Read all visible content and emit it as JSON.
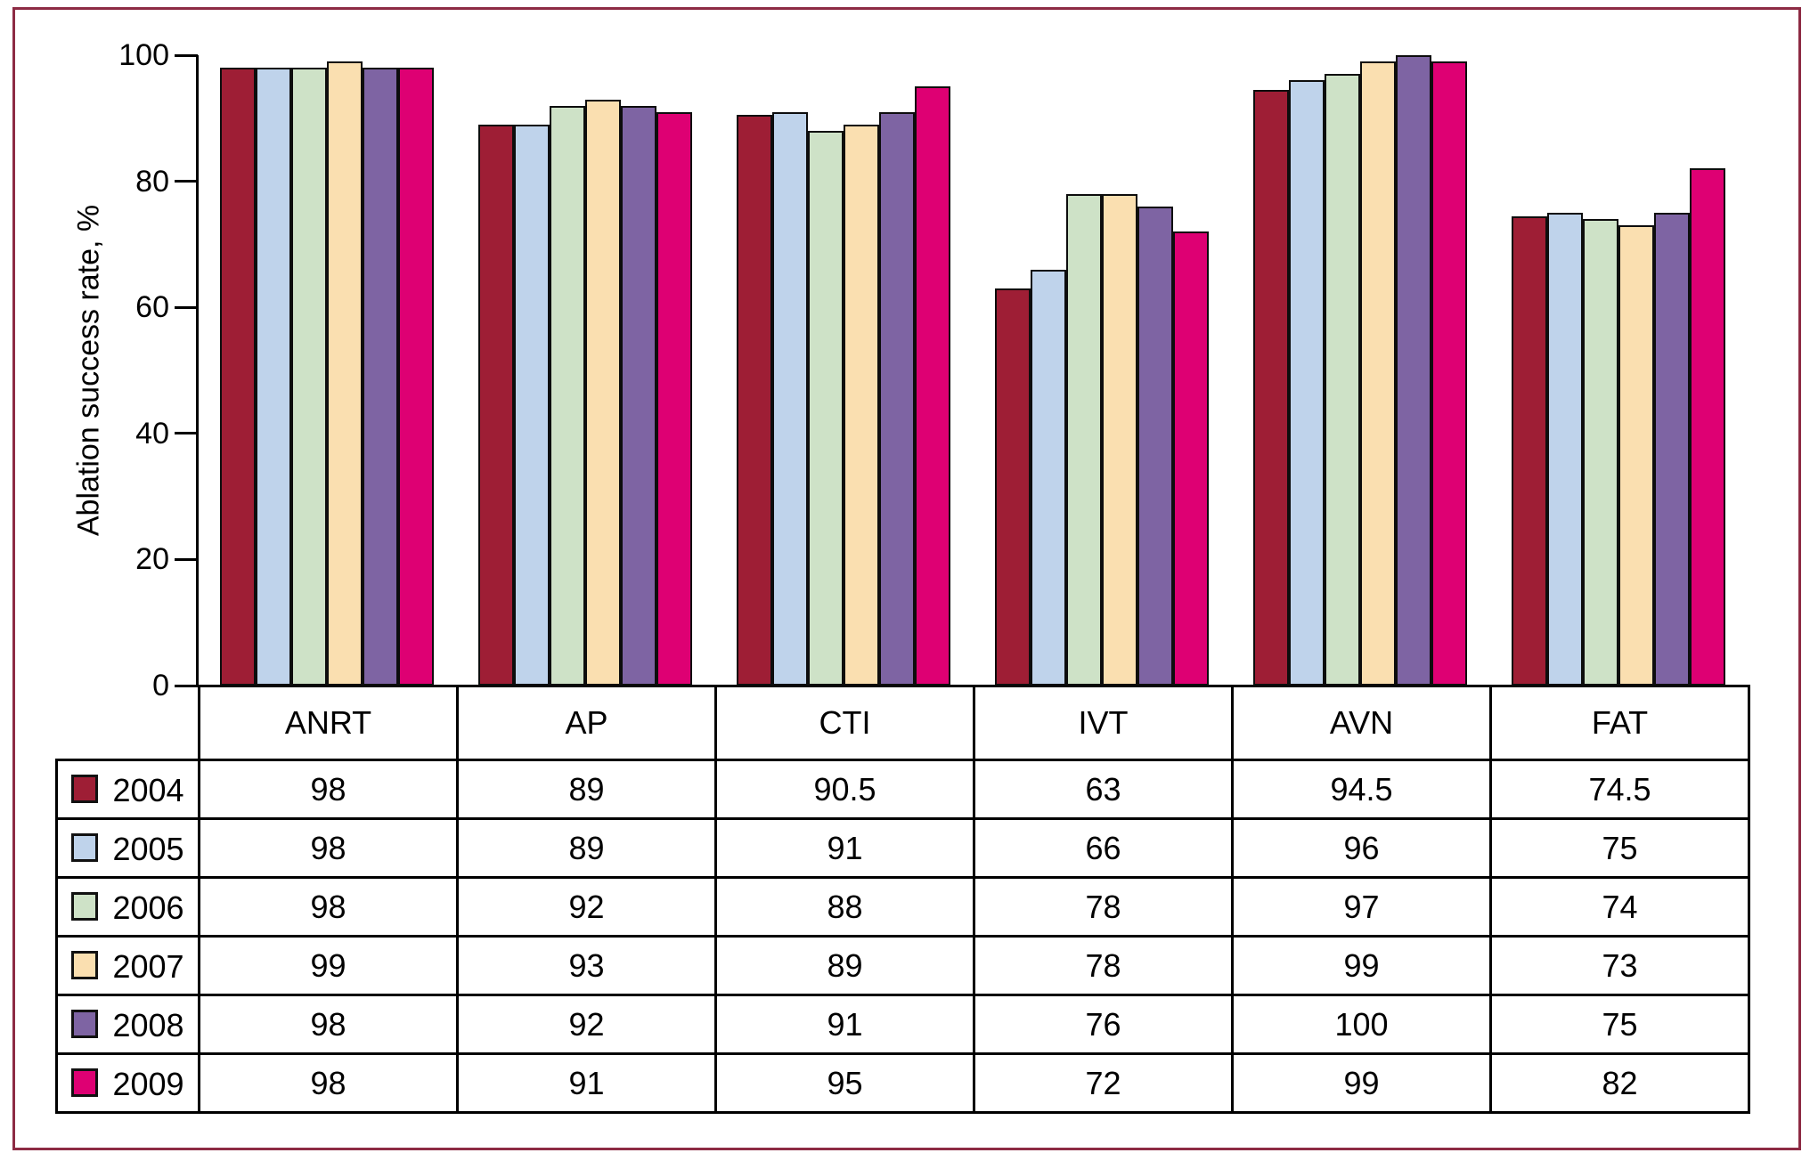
{
  "figure": {
    "frame_color": "#8D2B44",
    "background": "#ffffff",
    "axis_color": "#000000"
  },
  "chart_data": {
    "type": "bar",
    "title": "",
    "xlabel": "",
    "ylabel": "Ablation success rate, %",
    "ylim": [
      0,
      100
    ],
    "yticks": [
      0,
      20,
      40,
      60,
      80,
      100
    ],
    "grid": false,
    "legend_position": "table-left-column",
    "categories": [
      "ANRT",
      "AP",
      "CTI",
      "IVT",
      "AVN",
      "FAT"
    ],
    "series": [
      {
        "name": "2004",
        "color": "#9E1E35",
        "values": [
          98,
          89,
          90.5,
          63,
          94.5,
          74.5
        ]
      },
      {
        "name": "2005",
        "color": "#BFD3EB",
        "values": [
          98,
          89,
          91,
          66,
          96,
          75
        ]
      },
      {
        "name": "2006",
        "color": "#CEE2C7",
        "values": [
          98,
          92,
          88,
          78,
          97,
          74
        ]
      },
      {
        "name": "2007",
        "color": "#FADFB0",
        "values": [
          99,
          93,
          89,
          78,
          99,
          73
        ]
      },
      {
        "name": "2008",
        "color": "#7E64A3",
        "values": [
          98,
          92,
          91,
          76,
          100,
          75
        ]
      },
      {
        "name": "2009",
        "color": "#DE0073",
        "values": [
          98,
          91,
          95,
          72,
          99,
          82
        ]
      }
    ]
  }
}
